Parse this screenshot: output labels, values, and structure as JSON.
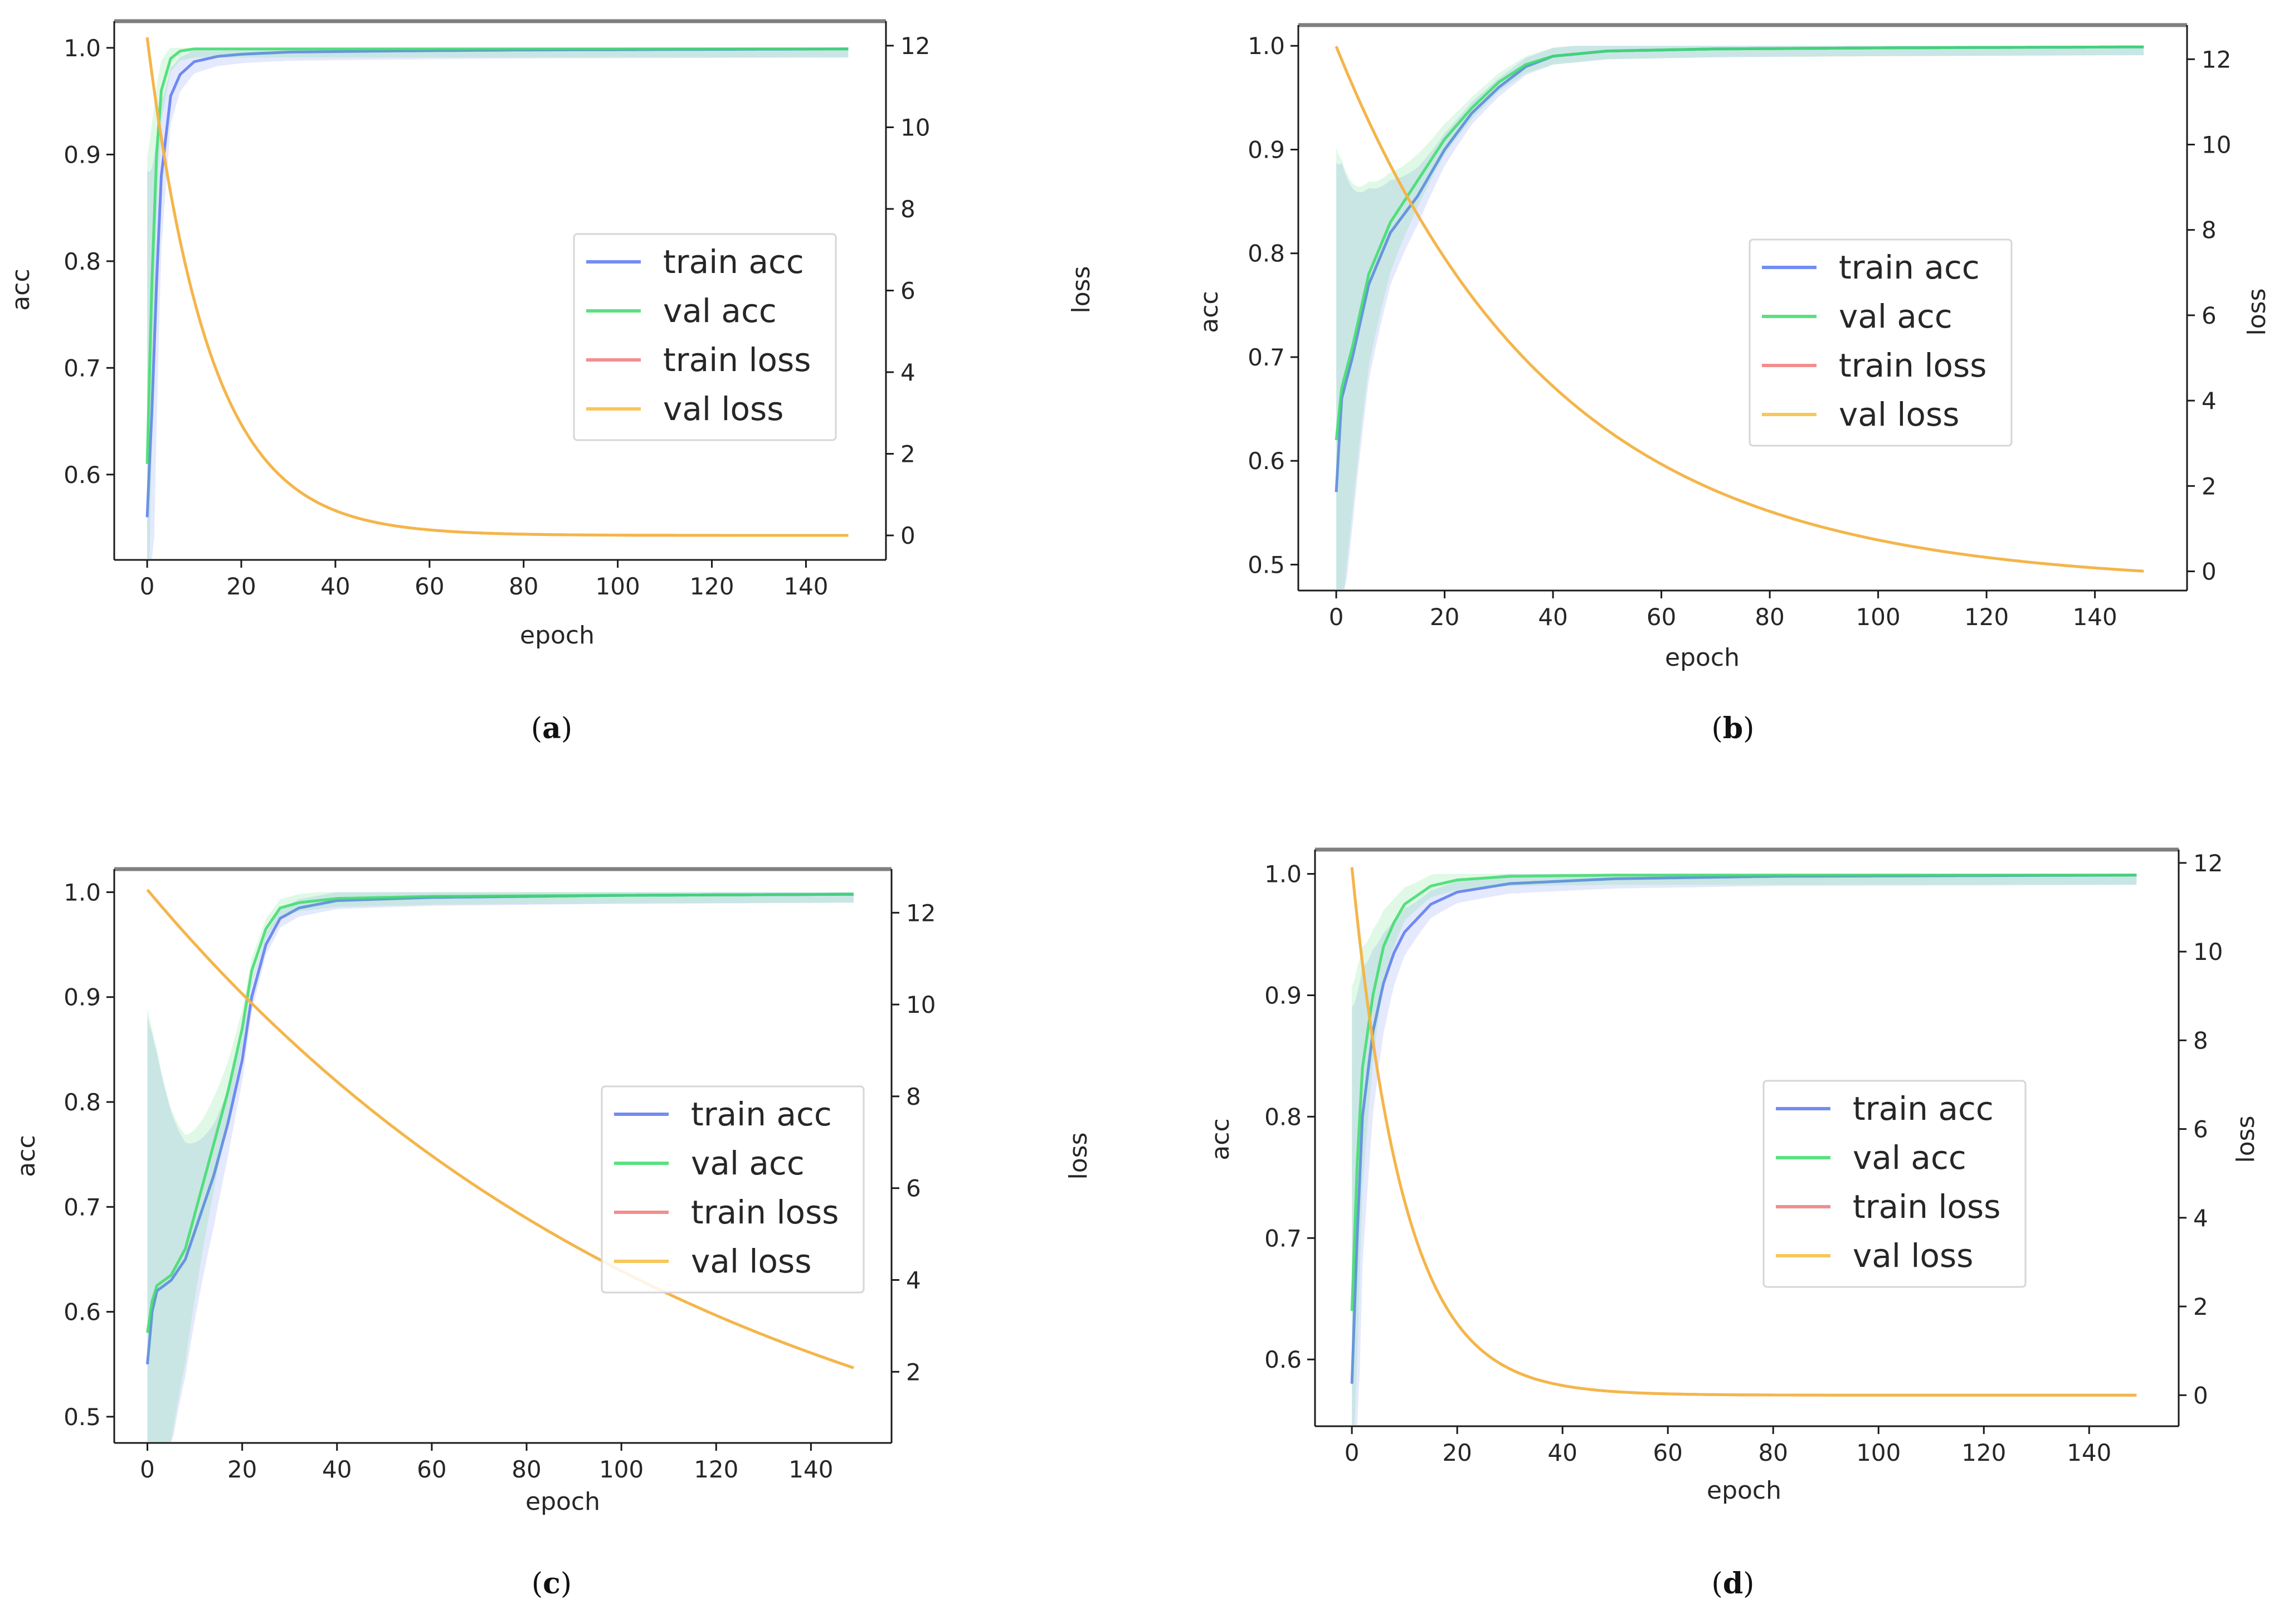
{
  "chart_data": [
    {
      "type": "line",
      "panel": "a",
      "caption": {
        "open": "(",
        "letter": "a",
        "close": ")"
      },
      "xlabel": "epoch",
      "ylabel_left": "acc",
      "ylabel_right": "loss",
      "xlim": [
        -7,
        157
      ],
      "xticks": [
        0,
        20,
        40,
        60,
        80,
        100,
        120,
        140
      ],
      "ylim_left": [
        0.52,
        1.025
      ],
      "yticks_left": [
        0.6,
        0.7,
        0.8,
        0.9,
        1.0
      ],
      "ylim_right": [
        -0.6,
        12.6
      ],
      "yticks_right": [
        0,
        2,
        4,
        6,
        8,
        10,
        12
      ],
      "legend": {
        "position": "center-right",
        "entries": [
          "train acc",
          "val acc",
          "train loss",
          "val loss"
        ]
      },
      "series": [
        {
          "name": "train acc",
          "axis": "left",
          "color": "#5a78f0",
          "band": true,
          "x": [
            0,
            1,
            2,
            3,
            5,
            7,
            10,
            15,
            20,
            30,
            50,
            80,
            150
          ],
          "y": [
            0.56,
            0.66,
            0.78,
            0.88,
            0.955,
            0.975,
            0.987,
            0.992,
            0.994,
            0.996,
            0.997,
            0.998,
            0.999
          ]
        },
        {
          "name": "val acc",
          "axis": "left",
          "color": "#3ddc6a",
          "band": true,
          "x": [
            0,
            1,
            2,
            3,
            5,
            7,
            10,
            15,
            20,
            50,
            150
          ],
          "y": [
            0.61,
            0.78,
            0.9,
            0.96,
            0.99,
            0.997,
            0.999,
            0.999,
            0.999,
            0.999,
            0.999
          ]
        },
        {
          "name": "train loss",
          "axis": "right",
          "color": "#f07a7a",
          "decay": {
            "start": 12.2,
            "end": 0,
            "rate": 0.075
          }
        },
        {
          "name": "val loss",
          "axis": "right",
          "color": "#f5bd3c",
          "decay": {
            "start": 12.2,
            "end": 0,
            "rate": 0.075
          }
        }
      ]
    },
    {
      "type": "line",
      "panel": "b",
      "caption": {
        "open": "(",
        "letter": "b",
        "close": ")"
      },
      "xlabel": "epoch",
      "ylabel_left": "acc",
      "ylabel_right": "loss",
      "xlim": [
        -7,
        157
      ],
      "xticks": [
        0,
        20,
        40,
        60,
        80,
        100,
        120,
        140
      ],
      "ylim_left": [
        0.475,
        1.02
      ],
      "yticks_left": [
        0.5,
        0.6,
        0.7,
        0.8,
        0.9,
        1.0
      ],
      "ylim_right": [
        -0.45,
        12.8
      ],
      "yticks_right": [
        0,
        2,
        4,
        6,
        8,
        10,
        12
      ],
      "legend": {
        "position": "center-right",
        "entries": [
          "train acc",
          "val acc",
          "train loss",
          "val loss"
        ]
      },
      "series": [
        {
          "name": "train acc",
          "axis": "left",
          "color": "#5a78f0",
          "band": true,
          "x": [
            0,
            1,
            3,
            6,
            10,
            15,
            20,
            25,
            30,
            35,
            40,
            50,
            70,
            100,
            150
          ],
          "y": [
            0.57,
            0.66,
            0.7,
            0.77,
            0.82,
            0.855,
            0.9,
            0.935,
            0.96,
            0.98,
            0.99,
            0.995,
            0.997,
            0.998,
            0.999
          ]
        },
        {
          "name": "val acc",
          "axis": "left",
          "color": "#3ddc6a",
          "band": true,
          "x": [
            0,
            1,
            3,
            6,
            10,
            15,
            20,
            25,
            30,
            35,
            40,
            50,
            70,
            100,
            150
          ],
          "y": [
            0.62,
            0.67,
            0.71,
            0.78,
            0.83,
            0.87,
            0.91,
            0.94,
            0.965,
            0.982,
            0.99,
            0.995,
            0.997,
            0.998,
            0.999
          ]
        },
        {
          "name": "train loss",
          "axis": "right",
          "color": "#f07a7a",
          "decay": {
            "start": 12.3,
            "end": -0.3,
            "rate": 0.025
          }
        },
        {
          "name": "val loss",
          "axis": "right",
          "color": "#f5bd3c",
          "decay": {
            "start": 12.3,
            "end": -0.3,
            "rate": 0.025
          }
        }
      ]
    },
    {
      "type": "line",
      "panel": "c",
      "caption": {
        "open": "(",
        "letter": "c",
        "close": ")"
      },
      "xlabel": "epoch",
      "ylabel_left": "acc",
      "ylabel_right": "loss",
      "xlim": [
        -7,
        157
      ],
      "xticks": [
        0,
        20,
        40,
        60,
        80,
        100,
        120,
        140
      ],
      "ylim_left": [
        0.475,
        1.022
      ],
      "yticks_left": [
        0.5,
        0.6,
        0.7,
        0.8,
        0.9,
        1.0
      ],
      "ylim_right": [
        0.45,
        12.95
      ],
      "yticks_right": [
        2,
        4,
        6,
        8,
        10,
        12
      ],
      "legend": {
        "position": "center-right",
        "entries": [
          "train acc",
          "val acc",
          "train loss",
          "val loss"
        ]
      },
      "series": [
        {
          "name": "train acc",
          "axis": "left",
          "color": "#5a78f0",
          "band": true,
          "x": [
            0,
            1,
            2,
            5,
            8,
            11,
            14,
            17,
            20,
            22,
            25,
            28,
            32,
            40,
            60,
            100,
            150
          ],
          "y": [
            0.55,
            0.6,
            0.62,
            0.63,
            0.65,
            0.69,
            0.73,
            0.78,
            0.84,
            0.9,
            0.95,
            0.975,
            0.985,
            0.992,
            0.995,
            0.997,
            0.998
          ]
        },
        {
          "name": "val acc",
          "axis": "left",
          "color": "#3ddc6a",
          "band": true,
          "x": [
            0,
            1,
            2,
            5,
            8,
            11,
            14,
            17,
            20,
            22,
            25,
            28,
            32,
            40,
            60,
            100,
            150
          ],
          "y": [
            0.58,
            0.61,
            0.625,
            0.635,
            0.66,
            0.71,
            0.76,
            0.81,
            0.87,
            0.925,
            0.965,
            0.985,
            0.99,
            0.994,
            0.996,
            0.997,
            0.998
          ]
        },
        {
          "name": "train loss",
          "axis": "right",
          "color": "#f07a7a",
          "decay": {
            "start": 12.5,
            "end": -2.0,
            "rate": 0.0085
          }
        },
        {
          "name": "val loss",
          "axis": "right",
          "color": "#f5bd3c",
          "decay": {
            "start": 12.5,
            "end": -2.0,
            "rate": 0.0085
          }
        }
      ]
    },
    {
      "type": "line",
      "panel": "d",
      "caption": {
        "open": "(",
        "letter": "d",
        "close": ")"
      },
      "xlabel": "epoch",
      "ylabel_left": "acc",
      "ylabel_right": "loss",
      "xlim": [
        -7,
        157
      ],
      "xticks": [
        0,
        20,
        40,
        60,
        80,
        100,
        120,
        140
      ],
      "ylim_left": [
        0.545,
        1.02
      ],
      "yticks_left": [
        0.6,
        0.7,
        0.8,
        0.9,
        1.0
      ],
      "ylim_right": [
        -0.7,
        12.3
      ],
      "yticks_right": [
        0,
        2,
        4,
        6,
        8,
        10,
        12
      ],
      "legend": {
        "position": "center-right",
        "entries": [
          "train acc",
          "val acc",
          "train loss",
          "val loss"
        ]
      },
      "series": [
        {
          "name": "train acc",
          "axis": "left",
          "color": "#5a78f0",
          "band": true,
          "x": [
            0,
            1,
            2,
            4,
            6,
            8,
            10,
            15,
            20,
            30,
            50,
            80,
            150
          ],
          "y": [
            0.58,
            0.7,
            0.8,
            0.87,
            0.91,
            0.935,
            0.952,
            0.975,
            0.985,
            0.992,
            0.996,
            0.998,
            0.999
          ]
        },
        {
          "name": "val acc",
          "axis": "left",
          "color": "#3ddc6a",
          "band": true,
          "x": [
            0,
            1,
            2,
            4,
            6,
            8,
            10,
            15,
            20,
            30,
            50,
            150
          ],
          "y": [
            0.64,
            0.76,
            0.84,
            0.9,
            0.94,
            0.96,
            0.975,
            0.99,
            0.995,
            0.998,
            0.999,
            0.999
          ]
        },
        {
          "name": "train loss",
          "axis": "right",
          "color": "#f07a7a",
          "decay": {
            "start": 11.9,
            "end": 0,
            "rate": 0.1
          }
        },
        {
          "name": "val loss",
          "axis": "right",
          "color": "#f5bd3c",
          "decay": {
            "start": 11.9,
            "end": 0,
            "rate": 0.1
          }
        }
      ]
    }
  ]
}
